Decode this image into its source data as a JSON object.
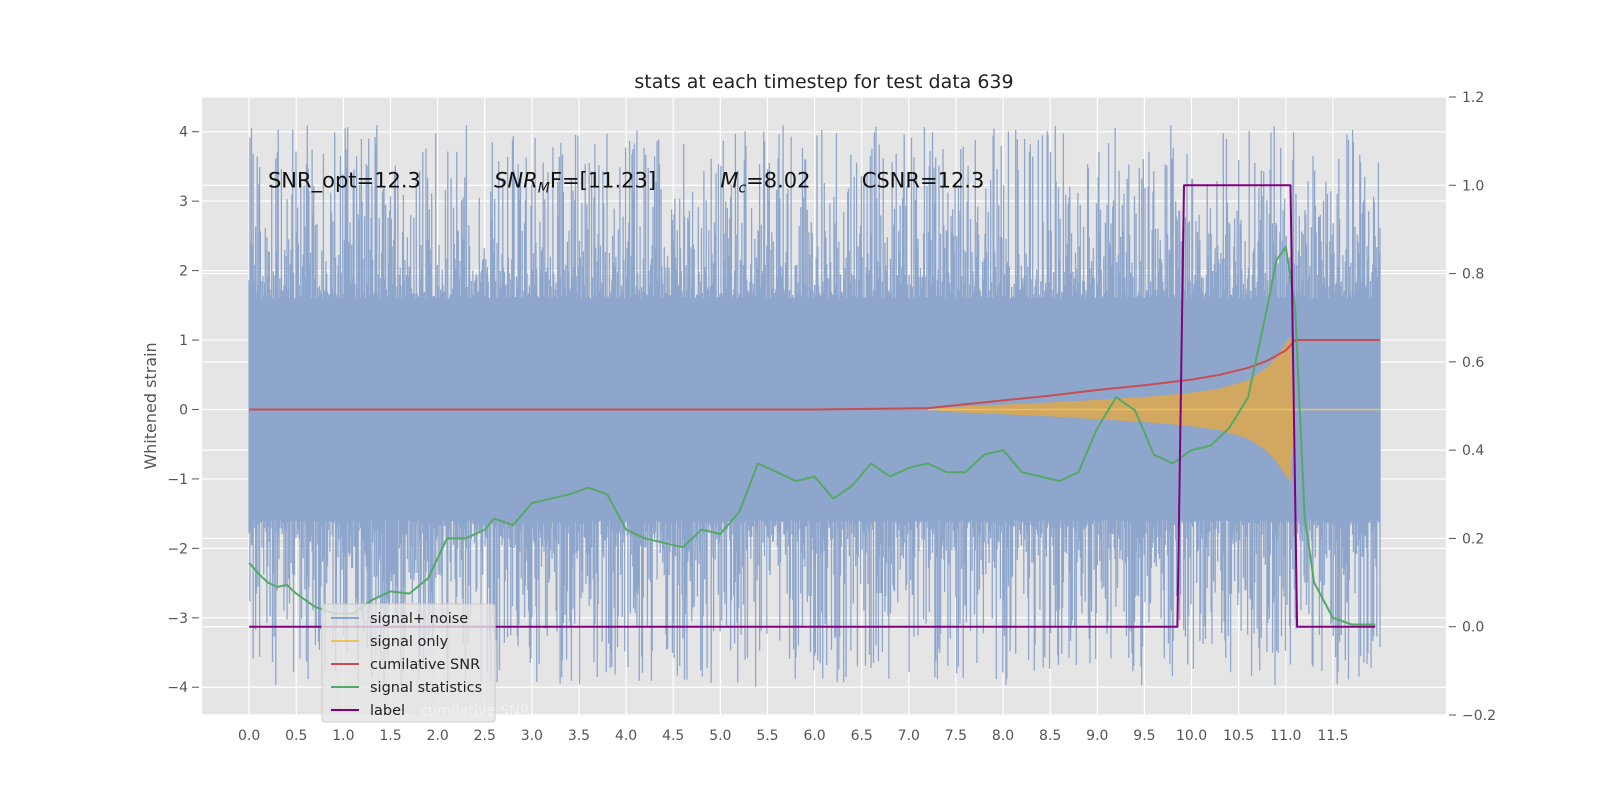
{
  "chart_data": {
    "type": "line",
    "title": "stats at each timestep for test data 639",
    "ylabel": "Whitened strain",
    "xlabel": "",
    "xlim": [
      -0.5,
      12.7
    ],
    "ylim": [
      -4.4,
      4.5
    ],
    "y2lim": [
      -0.2,
      1.2
    ],
    "grid": true,
    "legend_position": "lower-left",
    "x_ticks": [
      0.0,
      0.5,
      1.0,
      1.5,
      2.0,
      2.5,
      3.0,
      3.5,
      4.0,
      4.5,
      5.0,
      5.5,
      6.0,
      6.5,
      7.0,
      7.5,
      8.0,
      8.5,
      9.0,
      9.5,
      10.0,
      10.5,
      11.0,
      11.5
    ],
    "x_tick_labels": [
      "0.0",
      "0.5",
      "1.0",
      "1.5",
      "2.0",
      "2.5",
      "3.0",
      "3.5",
      "4.0",
      "4.5",
      "5.0",
      "5.5",
      "6.0",
      "6.5",
      "7.0",
      "7.5",
      "8.0",
      "8.5",
      "9.0",
      "9.5",
      "10.0",
      "10.5",
      "11.0",
      "11.5"
    ],
    "y_ticks": [
      -4,
      -3,
      -2,
      -1,
      0,
      1,
      2,
      3,
      4
    ],
    "y_tick_labels": [
      "−4",
      "−3",
      "−2",
      "−1",
      "0",
      "1",
      "2",
      "3",
      "4"
    ],
    "y2_ticks": [
      -0.2,
      0.0,
      0.2,
      0.4,
      0.6,
      0.8,
      1.0,
      1.2
    ],
    "y2_tick_labels": [
      "−0.2",
      "0.0",
      "0.2",
      "0.4",
      "0.6",
      "0.8",
      "1.0",
      "1.2"
    ],
    "annotations": [
      {
        "label": "SNR_opt",
        "value": "=12.3",
        "x": 0.2
      },
      {
        "label": "SNR",
        "value": "F=[11.23]",
        "x": 2.6
      },
      {
        "label": "M",
        "value": "=8.02",
        "x": 5.0
      },
      {
        "label": "CSNR",
        "value": "=12.3",
        "x": 6.5
      }
    ],
    "annotation_y": 3.2,
    "series": [
      {
        "name": "signal+ noise",
        "color": "#8fa6cc",
        "axis": "left",
        "x_start": 0.0,
        "x_end": 12.0,
        "envelope_upper": 1.6,
        "envelope_lower": -1.6,
        "peaks_max": 4.1,
        "peaks_min": -4.0
      },
      {
        "name": "signal only",
        "color": "#e8c45a",
        "axis": "left",
        "x": [
          7.2,
          7.5,
          8.0,
          8.5,
          9.0,
          9.5,
          10.0,
          10.3,
          10.6,
          10.8,
          10.9,
          11.0,
          11.05,
          11.1,
          11.15,
          12.0
        ],
        "amplitude": [
          0.0,
          0.04,
          0.07,
          0.1,
          0.14,
          0.18,
          0.24,
          0.3,
          0.42,
          0.6,
          0.75,
          0.95,
          1.05,
          0.0,
          0.0,
          0.0
        ]
      },
      {
        "name": "cumilative SNR",
        "color": "#c44e52",
        "axis": "left",
        "x": [
          0.0,
          6.0,
          7.2,
          7.5,
          8.0,
          8.5,
          9.0,
          9.5,
          10.0,
          10.3,
          10.6,
          10.8,
          11.0,
          11.1,
          11.2,
          12.0
        ],
        "y": [
          0.0,
          0.0,
          0.02,
          0.06,
          0.13,
          0.2,
          0.28,
          0.35,
          0.43,
          0.5,
          0.6,
          0.7,
          0.85,
          1.0,
          1.0,
          1.0
        ]
      },
      {
        "name": "signal statistics",
        "color": "#55a868",
        "axis": "right",
        "x": [
          0.0,
          0.1,
          0.2,
          0.3,
          0.4,
          0.5,
          0.7,
          0.9,
          1.1,
          1.3,
          1.5,
          1.7,
          1.9,
          2.1,
          2.3,
          2.5,
          2.6,
          2.8,
          3.0,
          3.2,
          3.4,
          3.6,
          3.8,
          4.0,
          4.2,
          4.4,
          4.6,
          4.8,
          5.0,
          5.2,
          5.4,
          5.6,
          5.8,
          6.0,
          6.2,
          6.4,
          6.6,
          6.8,
          7.0,
          7.2,
          7.4,
          7.6,
          7.8,
          8.0,
          8.2,
          8.4,
          8.6,
          8.8,
          9.0,
          9.2,
          9.4,
          9.6,
          9.8,
          10.0,
          10.2,
          10.4,
          10.6,
          10.8,
          10.9,
          11.0,
          11.1,
          11.2,
          11.3,
          11.5,
          11.7,
          11.95
        ],
        "y": [
          0.145,
          0.12,
          0.1,
          0.09,
          0.095,
          0.075,
          0.045,
          0.03,
          0.03,
          0.06,
          0.08,
          0.075,
          0.11,
          0.2,
          0.2,
          0.22,
          0.245,
          0.23,
          0.28,
          0.29,
          0.3,
          0.315,
          0.3,
          0.22,
          0.2,
          0.19,
          0.18,
          0.22,
          0.21,
          0.26,
          0.37,
          0.35,
          0.33,
          0.34,
          0.29,
          0.32,
          0.37,
          0.34,
          0.36,
          0.37,
          0.35,
          0.35,
          0.39,
          0.4,
          0.35,
          0.34,
          0.33,
          0.35,
          0.45,
          0.52,
          0.49,
          0.39,
          0.37,
          0.4,
          0.41,
          0.45,
          0.52,
          0.72,
          0.83,
          0.86,
          0.72,
          0.25,
          0.1,
          0.02,
          0.005,
          0.005
        ]
      },
      {
        "name": "label",
        "color": "#800080",
        "axis": "right",
        "x": [
          0.0,
          9.85,
          9.92,
          11.05,
          11.12,
          11.95
        ],
        "y": [
          0.0,
          0.0,
          1.0,
          1.0,
          0.0,
          0.0
        ]
      }
    ],
    "legend_overlay_text": "cumilative SNR"
  }
}
